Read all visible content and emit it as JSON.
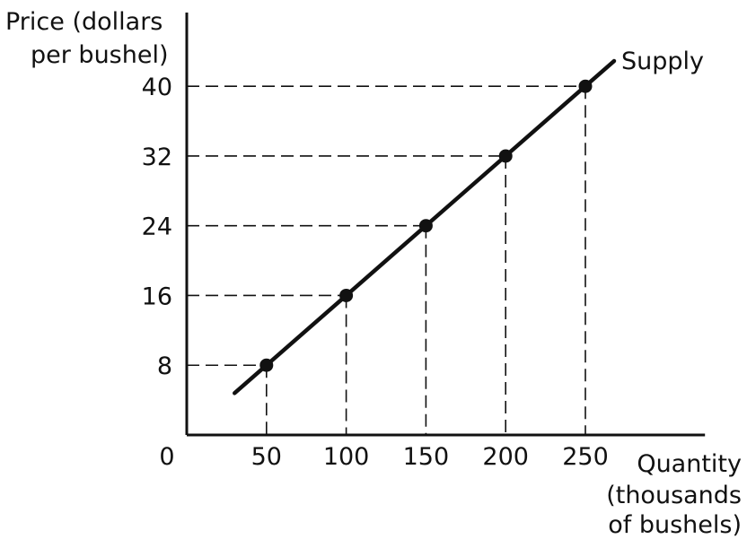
{
  "chart_data": {
    "type": "line",
    "ylabel_lines": [
      "Price (dollars",
      "per bushel)"
    ],
    "xlabel_lines": [
      "Quantity",
      "(thousands",
      "of bushels)"
    ],
    "origin_label": "0",
    "x_ticks": [
      50,
      100,
      150,
      200,
      250
    ],
    "y_ticks": [
      8,
      16,
      24,
      32,
      40
    ],
    "xlim": [
      0,
      325
    ],
    "ylim": [
      0,
      50
    ],
    "grid": false,
    "guide_lines": "dashed",
    "series": [
      {
        "name": "Supply",
        "x": [
          50,
          100,
          150,
          200,
          250
        ],
        "y": [
          8,
          16,
          24,
          32,
          40
        ],
        "line_x": [
          30,
          268
        ],
        "line_y": [
          4.8,
          42.9
        ],
        "markers": true
      }
    ],
    "colors": {
      "line": "#111111",
      "guide": "#111111"
    }
  }
}
